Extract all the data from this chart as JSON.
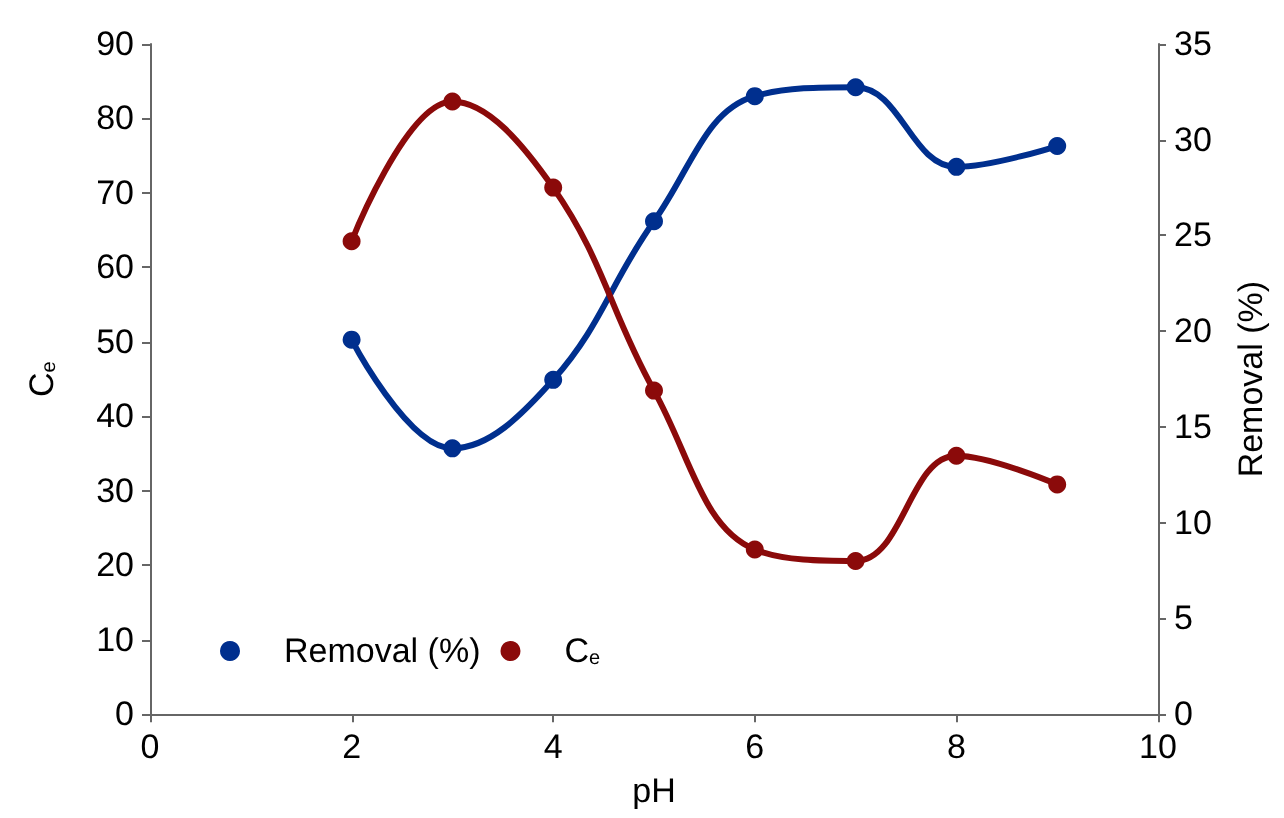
{
  "chart_data": {
    "type": "line",
    "xlabel": "pH",
    "ylabel": "C$_{e}$",
    "y2label": "Removal (%)",
    "x": [
      2,
      3,
      4,
      5,
      6,
      7,
      8,
      9
    ],
    "series": [
      {
        "name": "Removal (%)",
        "color": "#002f8e",
        "values": [
          50.3,
          35.7,
          44.9,
          66.2,
          83,
          84.2,
          73.5,
          76.3
        ]
      },
      {
        "name": "C$_{e}$",
        "color": "#8b0a0a",
        "axis": "y2",
        "values": [
          24.7,
          32,
          27.5,
          16.9,
          8.6,
          8,
          13.5,
          12
        ]
      }
    ],
    "xlim": [
      0,
      10
    ],
    "xticks": [
      0,
      2,
      4,
      6,
      8,
      10
    ],
    "ylim": [
      0,
      90
    ],
    "yticks": [
      0,
      10,
      20,
      30,
      40,
      50,
      60,
      70,
      80,
      90
    ],
    "y2lim": [
      0,
      35
    ],
    "y2ticks": [
      0,
      5,
      10,
      15,
      20,
      25,
      30,
      35
    ],
    "grid": false,
    "legend": "bottom left",
    "marker": "circle",
    "line_style": "solid"
  }
}
